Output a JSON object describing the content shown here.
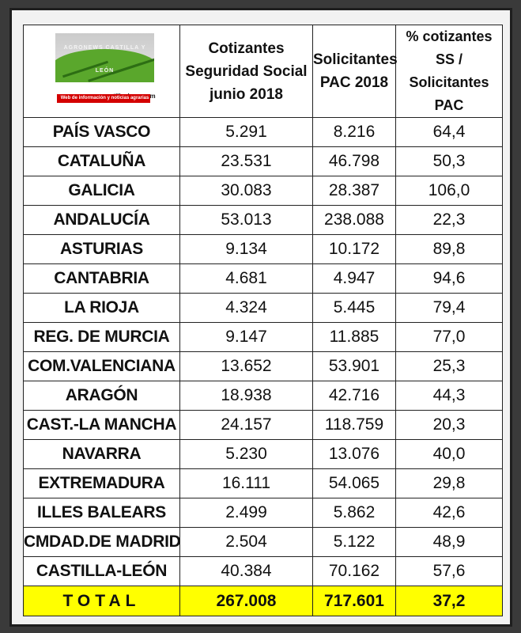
{
  "logo": {
    "name": "AGRONEWS CASTILLA Y LEÓN",
    "url": "www.agronewscastillayleon.com",
    "tagline": "Web de información y noticias agrarias"
  },
  "headers": {
    "cotizantes": [
      "Cotizantes",
      "Seguridad Social",
      "junio 2018"
    ],
    "solicitantes": [
      "Solicitantes",
      "PAC 2018"
    ],
    "pct": [
      "% cotizantes SS /",
      "Solicitantes PAC"
    ]
  },
  "rows": [
    {
      "region": "PAÍS VASCO",
      "cotizantes": "5.291",
      "solicitantes": "8.216",
      "pct": "64,4"
    },
    {
      "region": "CATALUÑA",
      "cotizantes": "23.531",
      "solicitantes": "46.798",
      "pct": "50,3"
    },
    {
      "region": "GALICIA",
      "cotizantes": "30.083",
      "solicitantes": "28.387",
      "pct": "106,0"
    },
    {
      "region": "ANDALUCÍA",
      "cotizantes": "53.013",
      "solicitantes": "238.088",
      "pct": "22,3"
    },
    {
      "region": "ASTURIAS",
      "cotizantes": "9.134",
      "solicitantes": "10.172",
      "pct": "89,8"
    },
    {
      "region": "CANTABRIA",
      "cotizantes": "4.681",
      "solicitantes": "4.947",
      "pct": "94,6"
    },
    {
      "region": "LA RIOJA",
      "cotizantes": "4.324",
      "solicitantes": "5.445",
      "pct": "79,4"
    },
    {
      "region": "REG. DE MURCIA",
      "cotizantes": "9.147",
      "solicitantes": "11.885",
      "pct": "77,0"
    },
    {
      "region": "COM.VALENCIANA",
      "cotizantes": "13.652",
      "solicitantes": "53.901",
      "pct": "25,3"
    },
    {
      "region": "ARAGÓN",
      "cotizantes": "18.938",
      "solicitantes": "42.716",
      "pct": "44,3"
    },
    {
      "region": "CAST.-LA MANCHA",
      "cotizantes": "24.157",
      "solicitantes": "118.759",
      "pct": "20,3"
    },
    {
      "region": "NAVARRA",
      "cotizantes": "5.230",
      "solicitantes": "13.076",
      "pct": "40,0"
    },
    {
      "region": "EXTREMADURA",
      "cotizantes": "16.111",
      "solicitantes": "54.065",
      "pct": "29,8"
    },
    {
      "region": "ILLES BALEARS",
      "cotizantes": "2.499",
      "solicitantes": "5.862",
      "pct": "42,6"
    },
    {
      "region": "CMDAD.DE MADRID",
      "cotizantes": "2.504",
      "solicitantes": "5.122",
      "pct": "48,9"
    },
    {
      "region": "CASTILLA-LEÓN",
      "cotizantes": "40.384",
      "solicitantes": "70.162",
      "pct": "57,6"
    }
  ],
  "total": {
    "region": "TOTAL",
    "cotizantes": "267.008",
    "solicitantes": "717.601",
    "pct": "37,2"
  },
  "colors": {
    "total_highlight": "#ffff00",
    "logo_green": "#5aa72c",
    "logo_red": "#d40000"
  }
}
